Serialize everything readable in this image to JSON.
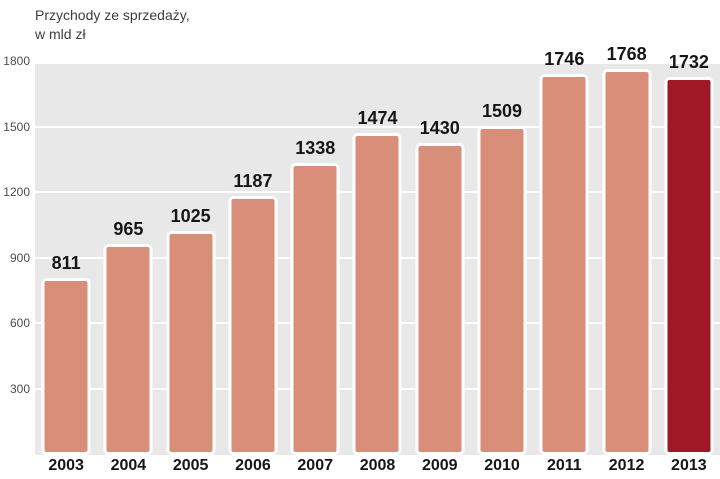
{
  "chart_data": {
    "type": "bar",
    "title_line1": "Przychody ze sprzedaży,",
    "title_line2": "w mld zł",
    "categories": [
      "2003",
      "2004",
      "2005",
      "2006",
      "2007",
      "2008",
      "2009",
      "2010",
      "2011",
      "2012",
      "2013"
    ],
    "values": [
      811,
      965,
      1025,
      1187,
      1338,
      1474,
      1430,
      1509,
      1746,
      1768,
      1732
    ],
    "ylim": [
      0,
      1800
    ],
    "yticks": [
      300,
      600,
      900,
      1200,
      1500,
      1800
    ],
    "grid": "on",
    "legend": "none",
    "bar_color": "#d98e7a",
    "highlight_color": "#9e1826",
    "highlight_index": 10,
    "plot_bg": "#e8e8e8",
    "grid_color": "#ffffff"
  }
}
